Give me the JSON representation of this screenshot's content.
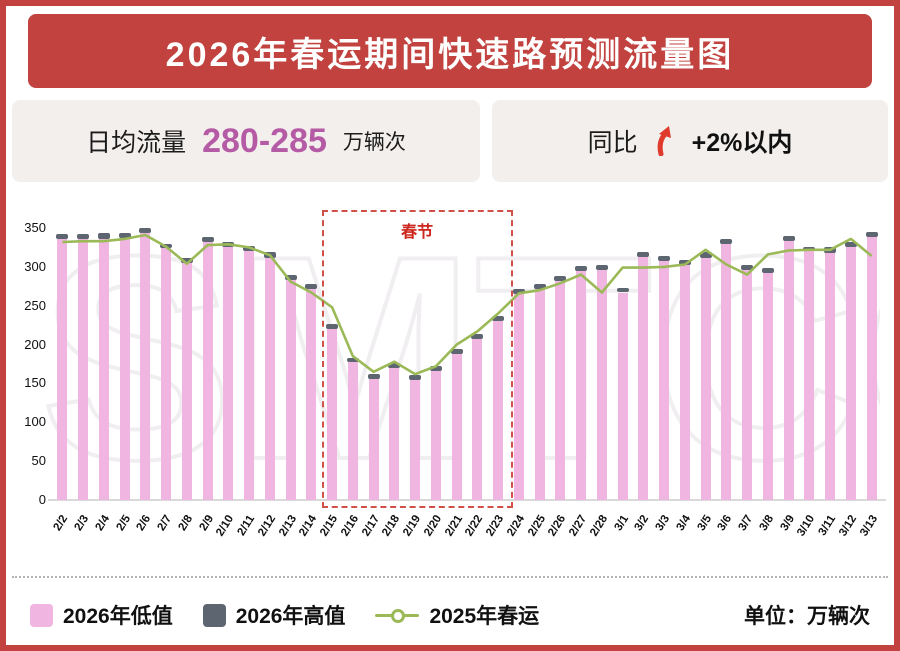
{
  "header": {
    "title": "2026年春运期间快速路预测流量图"
  },
  "stats": {
    "left": {
      "label": "日均流量",
      "value": "280-285",
      "unit": "万辆次"
    },
    "right": {
      "label": "同比",
      "value": "+2%以内"
    }
  },
  "chart_data": {
    "type": "bar",
    "title": "2026年春运期间快速路预测流量图",
    "categories": [
      "2/2",
      "2/3",
      "2/4",
      "2/5",
      "2/6",
      "2/7",
      "2/8",
      "2/9",
      "2/10",
      "2/11",
      "2/12",
      "2/13",
      "2/14",
      "2/15",
      "2/16",
      "2/17",
      "2/18",
      "2/19",
      "2/20",
      "2/21",
      "2/22",
      "2/23",
      "2/24",
      "2/25",
      "2/26",
      "2/27",
      "2/28",
      "3/1",
      "3/2",
      "3/3",
      "3/4",
      "3/5",
      "3/6",
      "3/7",
      "3/8",
      "3/9",
      "3/10",
      "3/11",
      "3/12",
      "3/13"
    ],
    "series": [
      {
        "name": "2026年低值",
        "type": "bar",
        "color": "#f0b5e0",
        "values": [
          336,
          336,
          336,
          337,
          344,
          324,
          305,
          332,
          325,
          320,
          312,
          283,
          271,
          220,
          177,
          156,
          170,
          155,
          166,
          188,
          207,
          230,
          265,
          271,
          282,
          295,
          296,
          267,
          313,
          308,
          302,
          312,
          329,
          296,
          292,
          333,
          320,
          318,
          325,
          339
        ]
      },
      {
        "name": "2026年高值",
        "type": "bar-cap",
        "color": "#5d6571",
        "values": [
          342,
          342,
          343,
          344,
          350,
          330,
          311,
          338,
          332,
          327,
          319,
          289,
          278,
          227,
          183,
          162,
          176,
          161,
          172,
          194,
          214,
          237,
          271,
          278,
          288,
          301,
          302,
          273,
          319,
          314,
          309,
          319,
          336,
          303,
          298,
          340,
          326,
          325,
          332,
          345
        ]
      },
      {
        "name": "2025年春运",
        "type": "line",
        "color": "#9bb957",
        "values": [
          332,
          333,
          333,
          336,
          341,
          326,
          304,
          328,
          329,
          325,
          315,
          281,
          267,
          248,
          185,
          165,
          178,
          162,
          172,
          200,
          217,
          240,
          266,
          270,
          279,
          290,
          267,
          299,
          299,
          300,
          303,
          322,
          303,
          290,
          316,
          321,
          322,
          322,
          336,
          314
        ]
      }
    ],
    "ylim": [
      0,
      350
    ],
    "yticks": [
      0,
      50,
      100,
      150,
      200,
      250,
      300,
      350
    ],
    "grid": false,
    "legend_position": "bottom",
    "annotation": {
      "label": "春节",
      "start": "2/15",
      "end": "2/23"
    },
    "unit_note": "单位：万辆次",
    "watermark": "SMTCC"
  },
  "legend": {
    "unit_note": "单位：万辆次"
  },
  "colors": {
    "accent_red": "#c1423e",
    "box_bg": "#f3efec",
    "magenta_value": "#b55ba6",
    "arrow_red": "#e03a2d",
    "bar_low": "#f0b5e0",
    "bar_high": "#5d6571",
    "line_2025": "#9bb957",
    "festival_red": "#cf5148"
  }
}
